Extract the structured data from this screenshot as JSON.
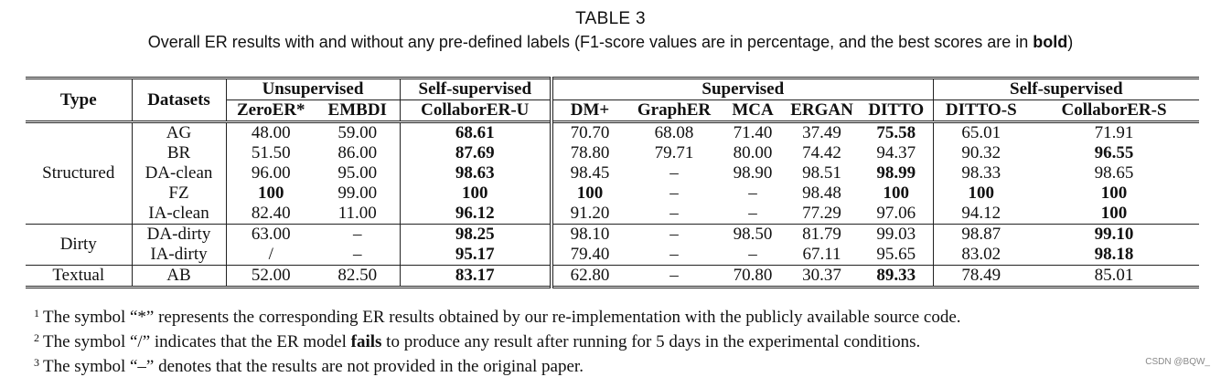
{
  "caption": {
    "title": "TABLE 3",
    "text_before": "Overall ER results with and without any pre-defined labels (F1-score values are in percentage, and the best scores are in ",
    "bold_word": "bold",
    "text_after": ")"
  },
  "table": {
    "header_type": "Type",
    "header_datasets": "Datasets",
    "groups": [
      "Unsupervised",
      "Self-supervised",
      "Supervised",
      "Self-supervised"
    ],
    "columns": [
      "ZeroER*",
      "EMBDI",
      "CollaborER-U",
      "DM+",
      "GraphER",
      "MCA",
      "ERGAN",
      "DITTO",
      "DITTO-S",
      "CollaborER-S"
    ],
    "types": [
      "Structured",
      "Dirty",
      "Textual"
    ],
    "rows": [
      {
        "dataset": "AG",
        "values": [
          "48.00",
          "59.00",
          "68.61",
          "70.70",
          "68.08",
          "71.40",
          "37.49",
          "75.58",
          "65.01",
          "71.91"
        ],
        "bold": [
          2,
          7
        ]
      },
      {
        "dataset": "BR",
        "values": [
          "51.50",
          "86.00",
          "87.69",
          "78.80",
          "79.71",
          "80.00",
          "74.42",
          "94.37",
          "90.32",
          "96.55"
        ],
        "bold": [
          2,
          9
        ]
      },
      {
        "dataset": "DA-clean",
        "values": [
          "96.00",
          "95.00",
          "98.63",
          "98.45",
          "–",
          "98.90",
          "98.51",
          "98.99",
          "98.33",
          "98.65"
        ],
        "bold": [
          2,
          7
        ]
      },
      {
        "dataset": "FZ",
        "values": [
          "100",
          "99.00",
          "100",
          "100",
          "–",
          "–",
          "98.48",
          "100",
          "100",
          "100"
        ],
        "bold": [
          0,
          2,
          3,
          7,
          8,
          9
        ]
      },
      {
        "dataset": "IA-clean",
        "values": [
          "82.40",
          "11.00",
          "96.12",
          "91.20",
          "–",
          "–",
          "77.29",
          "97.06",
          "94.12",
          "100"
        ],
        "bold": [
          2,
          9
        ]
      },
      {
        "dataset": "DA-dirty",
        "values": [
          "63.00",
          "–",
          "98.25",
          "98.10",
          "–",
          "98.50",
          "81.79",
          "99.03",
          "98.87",
          "99.10"
        ],
        "bold": [
          2,
          9
        ]
      },
      {
        "dataset": "IA-dirty",
        "values": [
          "/",
          "–",
          "95.17",
          "79.40",
          "–",
          "–",
          "67.11",
          "95.65",
          "83.02",
          "98.18"
        ],
        "bold": [
          2,
          9
        ]
      },
      {
        "dataset": "AB",
        "values": [
          "52.00",
          "82.50",
          "83.17",
          "62.80",
          "–",
          "70.80",
          "30.37",
          "89.33",
          "78.49",
          "85.01"
        ],
        "bold": [
          2,
          7
        ]
      }
    ]
  },
  "notes": [
    {
      "sup": "1",
      "parts": [
        {
          "t": "The symbol “*” represents the corresponding ER results obtained by our re-implementation with the publicly available source code."
        }
      ]
    },
    {
      "sup": "2",
      "parts": [
        {
          "t": "The symbol “/” indicates that the ER model "
        },
        {
          "t": "fails",
          "b": true
        },
        {
          "t": " to produce any result after running for 5 days in the experimental conditions."
        }
      ]
    },
    {
      "sup": "3",
      "parts": [
        {
          "t": "The symbol “–” denotes that the results are not provided in the original paper."
        }
      ]
    }
  ],
  "watermark": "CSDN @BQW_"
}
